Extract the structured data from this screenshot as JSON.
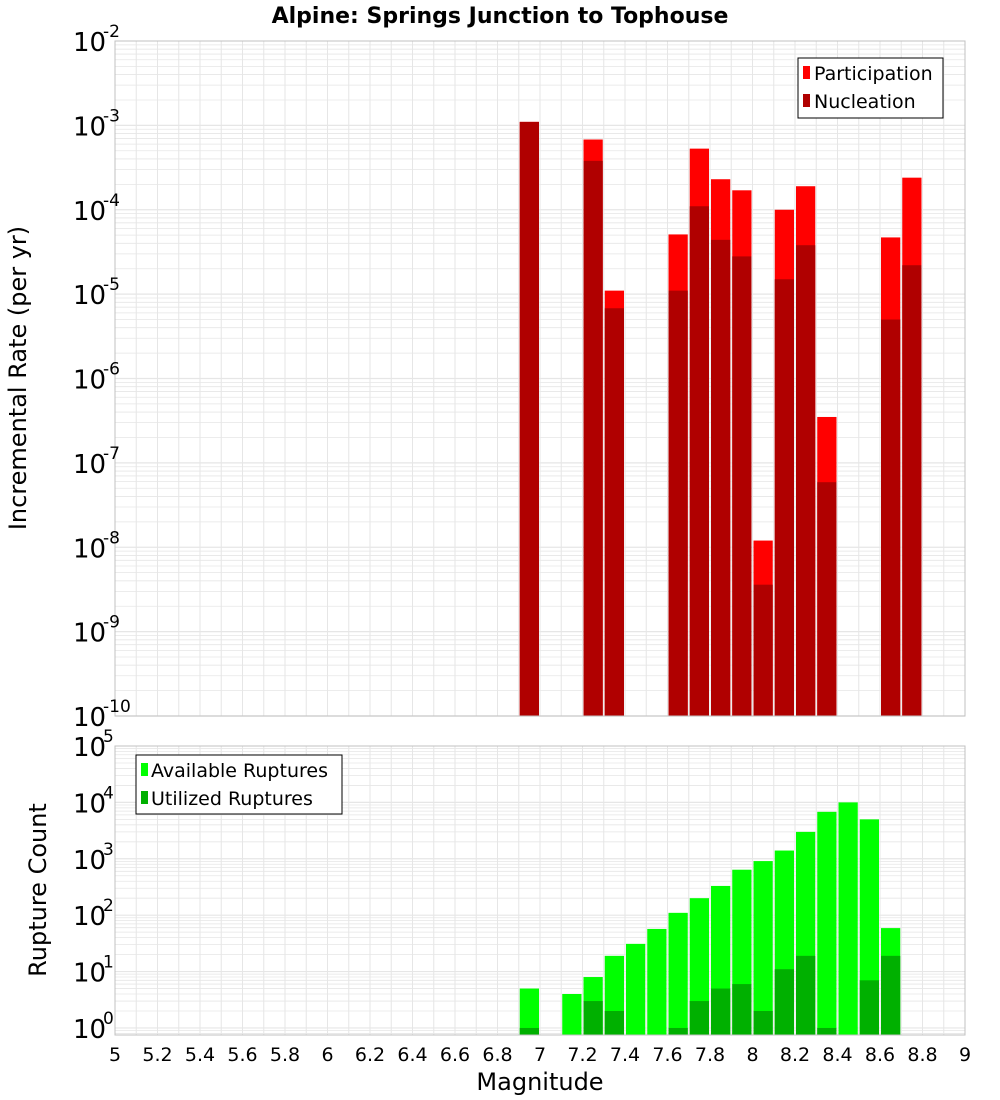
{
  "title": "Alpine: Springs Junction to Tophouse",
  "colors": {
    "participation": "#ff0000",
    "nucleation": "#b00000",
    "available": "#00ff00",
    "utilized": "#00b000",
    "grid": "#e6e6e6",
    "frame": "#c0c0c0"
  },
  "chart_data": [
    {
      "type": "bar",
      "ylabel": "Incremental Rate (per yr)",
      "yscale": "log",
      "ylim": [
        1e-10,
        0.01
      ],
      "xlim": [
        5,
        9
      ],
      "grid": true,
      "legend_position": "top-right",
      "y_tick_exponents": [
        -10,
        -9,
        -8,
        -7,
        -6,
        -5,
        -4,
        -3,
        -2
      ],
      "series": [
        {
          "name": "Participation",
          "x": [
            6.95,
            7.25,
            7.35,
            7.65,
            7.75,
            7.85,
            7.95,
            8.05,
            8.15,
            8.25,
            8.35,
            8.65,
            8.75
          ],
          "values": [
            0.0011,
            0.00068,
            1.1e-05,
            5.1e-05,
            0.00053,
            0.00023,
            0.00017,
            1.2e-08,
            0.0001,
            0.00019,
            3.5e-07,
            4.7e-05,
            0.00024
          ]
        },
        {
          "name": "Nucleation",
          "x": [
            6.95,
            7.25,
            7.35,
            7.65,
            7.75,
            7.85,
            7.95,
            8.05,
            8.15,
            8.25,
            8.35,
            8.65,
            8.75
          ],
          "values": [
            0.0011,
            0.00038,
            6.8e-06,
            1.1e-05,
            0.00011,
            4.4e-05,
            2.8e-05,
            3.6e-09,
            1.5e-05,
            3.8e-05,
            5.9e-08,
            5e-06,
            2.2e-05
          ]
        }
      ]
    },
    {
      "type": "bar",
      "xlabel": "Magnitude",
      "ylabel": "Rupture Count",
      "yscale": "log",
      "ylim": [
        0.75,
        100000.0
      ],
      "xlim": [
        5,
        9
      ],
      "grid": true,
      "legend_position": "top-left",
      "y_tick_exponents": [
        0,
        1,
        2,
        3,
        4,
        5
      ],
      "x_ticks": [
        "5",
        "5.2",
        "5.4",
        "5.6",
        "5.8",
        "6",
        "6.2",
        "6.4",
        "6.6",
        "6.8",
        "7",
        "7.2",
        "7.4",
        "7.6",
        "7.8",
        "8",
        "8.2",
        "8.4",
        "8.6",
        "8.8",
        "9"
      ],
      "series": [
        {
          "name": "Available Ruptures",
          "x": [
            6.95,
            7.15,
            7.25,
            7.35,
            7.45,
            7.55,
            7.65,
            7.75,
            7.85,
            7.95,
            8.05,
            8.15,
            8.25,
            8.35,
            8.45,
            8.55,
            8.65
          ],
          "values": [
            5,
            4,
            8,
            19,
            31,
            57,
            110,
            200,
            330,
            640,
            910,
            1400,
            3000,
            6800,
            10000,
            5000,
            59
          ]
        },
        {
          "name": "Utilized Ruptures",
          "x": [
            6.95,
            7.25,
            7.35,
            7.65,
            7.75,
            7.85,
            7.95,
            8.05,
            8.15,
            8.25,
            8.35,
            8.55,
            8.65
          ],
          "values": [
            1,
            3,
            2,
            1,
            3,
            5,
            6,
            2,
            11,
            19,
            1,
            7,
            19
          ]
        }
      ]
    }
  ]
}
